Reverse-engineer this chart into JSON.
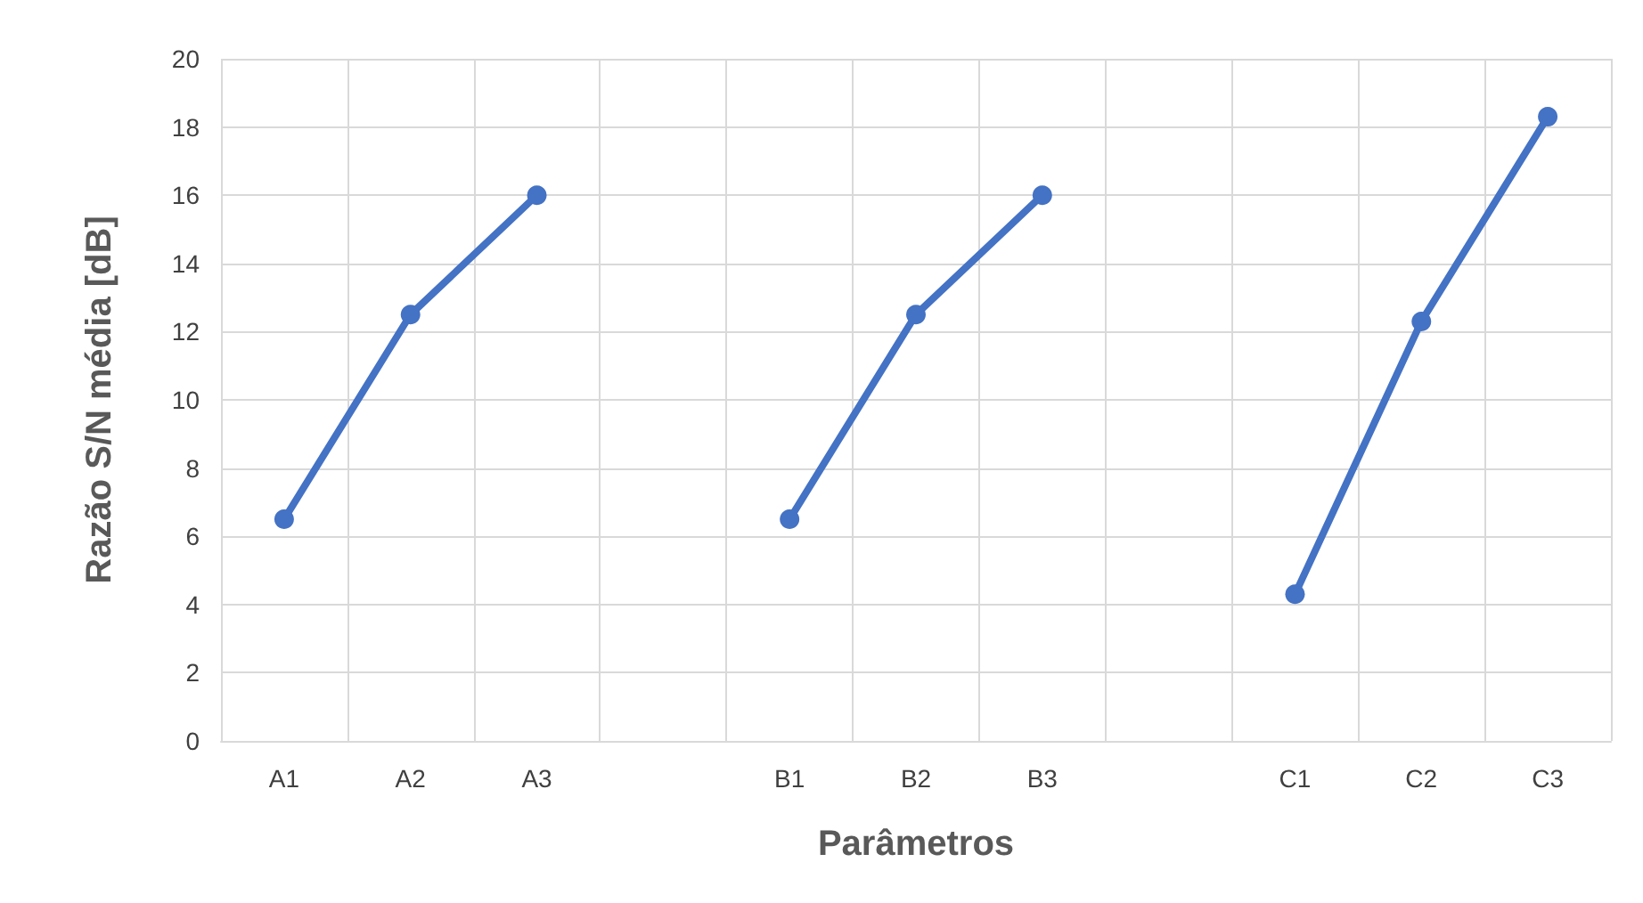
{
  "chart_data": {
    "type": "line",
    "xlabel": "Parâmetros",
    "ylabel": "Razão S/N média [dB]",
    "categories": [
      "A1",
      "A2",
      "A3",
      null,
      "B1",
      "B2",
      "B3",
      null,
      "C1",
      "C2",
      "C3"
    ],
    "series": [
      {
        "color": "#4472c4",
        "values": [
          6.5,
          12.5,
          16.0,
          null,
          6.5,
          12.5,
          16.0,
          null,
          4.3,
          12.3,
          18.3
        ]
      }
    ],
    "ylim": [
      0,
      20
    ],
    "yticks": [
      0,
      2,
      4,
      6,
      8,
      10,
      12,
      14,
      16,
      18,
      20
    ],
    "grid": true,
    "marker": "circle",
    "line_style": "solid"
  }
}
